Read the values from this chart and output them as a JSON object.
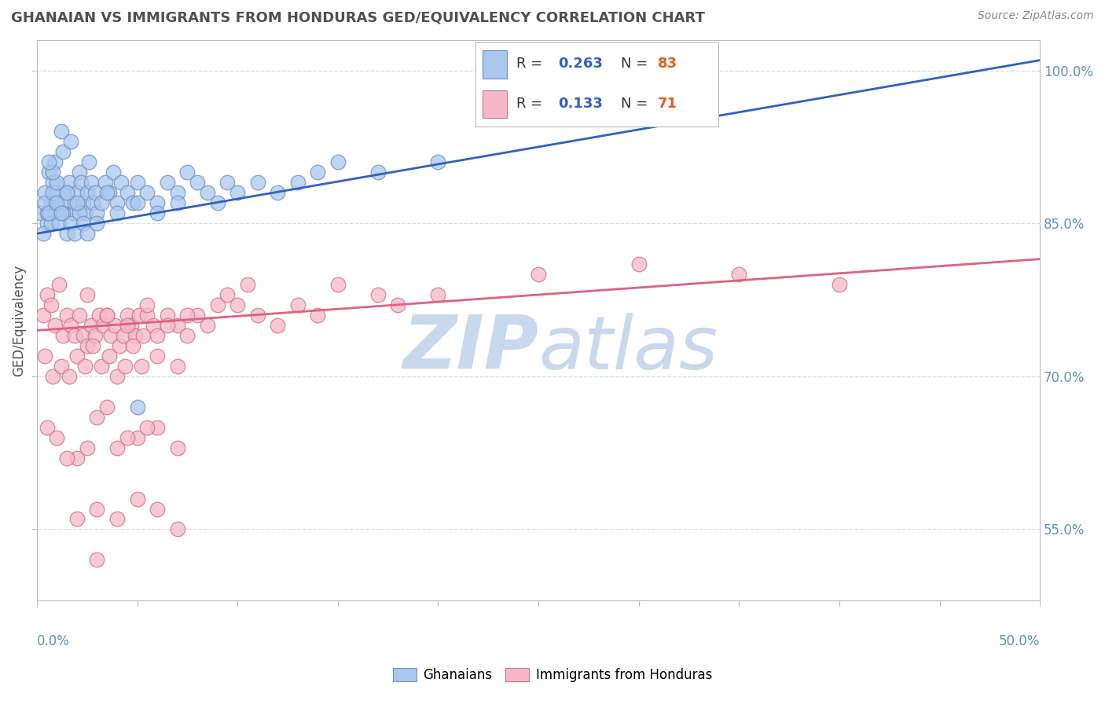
{
  "title": "GHANAIAN VS IMMIGRANTS FROM HONDURAS GED/EQUIVALENCY CORRELATION CHART",
  "source": "Source: ZipAtlas.com",
  "ylabel": "GED/Equivalency",
  "xmin": 0.0,
  "xmax": 50.0,
  "ymin": 48.0,
  "ymax": 103.0,
  "ytick_vals": [
    55,
    70,
    85,
    100
  ],
  "ytick_labels": [
    "55.0%",
    "70.0%",
    "85.0%",
    "100.0%"
  ],
  "legend_r1": "0.263",
  "legend_n1": "83",
  "legend_r2": "0.133",
  "legend_n2": "71",
  "blue_color": "#A8C8F0",
  "pink_color": "#F5B8C8",
  "blue_edge": "#7090C0",
  "pink_edge": "#D07090",
  "trend_blue": "#3060C0",
  "trend_pink": "#E06080",
  "title_color": "#505050",
  "axis_color": "#6090C0",
  "watermark_color": "#C8D8EE",
  "grid_color": "#D0DFF0",
  "grid_style": "--",
  "blue_scatter_x": [
    0.2,
    0.4,
    0.5,
    0.6,
    0.7,
    0.8,
    0.9,
    1.0,
    1.1,
    1.2,
    1.3,
    1.4,
    1.5,
    1.6,
    1.7,
    1.8,
    1.9,
    2.0,
    2.1,
    2.2,
    2.3,
    2.4,
    2.5,
    2.6,
    2.7,
    2.8,
    2.9,
    3.0,
    3.2,
    3.4,
    3.6,
    3.8,
    4.0,
    4.2,
    4.5,
    4.8,
    5.0,
    5.5,
    6.0,
    6.5,
    7.0,
    7.5,
    8.0,
    8.5,
    9.0,
    9.5,
    10.0,
    11.0,
    12.0,
    13.0,
    14.0,
    15.0,
    17.0,
    20.0,
    0.3,
    0.5,
    0.7,
    0.9,
    1.1,
    1.3,
    1.5,
    1.7,
    1.9,
    2.1,
    2.3,
    2.5,
    0.4,
    0.6,
    0.8,
    1.0,
    1.2,
    3.0,
    4.0,
    5.0,
    6.0,
    7.0,
    3.5,
    2.0,
    1.5,
    1.0,
    0.8,
    0.6,
    5.0
  ],
  "blue_scatter_y": [
    86,
    88,
    85,
    90,
    87,
    89,
    91,
    88,
    86,
    94,
    92,
    87,
    88,
    89,
    93,
    86,
    87,
    88,
    90,
    89,
    87,
    86,
    88,
    91,
    89,
    87,
    88,
    86,
    87,
    89,
    88,
    90,
    87,
    89,
    88,
    87,
    89,
    88,
    87,
    89,
    88,
    90,
    89,
    88,
    87,
    89,
    88,
    89,
    88,
    89,
    90,
    91,
    90,
    91,
    84,
    86,
    85,
    87,
    85,
    86,
    84,
    85,
    84,
    86,
    85,
    84,
    87,
    86,
    88,
    87,
    86,
    85,
    86,
    87,
    86,
    87,
    88,
    87,
    88,
    89,
    90,
    91,
    67
  ],
  "pink_scatter_x": [
    0.3,
    0.5,
    0.7,
    0.9,
    1.1,
    1.3,
    1.5,
    1.7,
    1.9,
    2.1,
    2.3,
    2.5,
    2.7,
    2.9,
    3.1,
    3.3,
    3.5,
    3.7,
    3.9,
    4.1,
    4.3,
    4.5,
    4.7,
    4.9,
    5.1,
    5.3,
    5.5,
    5.8,
    6.0,
    6.5,
    7.0,
    7.5,
    8.0,
    8.5,
    9.0,
    9.5,
    10.0,
    10.5,
    11.0,
    12.0,
    13.0,
    14.0,
    15.0,
    17.0,
    18.0,
    20.0,
    25.0,
    30.0,
    35.0,
    40.0,
    0.4,
    0.8,
    1.2,
    1.6,
    2.0,
    2.4,
    2.8,
    3.2,
    3.6,
    4.0,
    4.4,
    4.8,
    5.2,
    6.0,
    7.0,
    2.5,
    3.5,
    4.5,
    5.5,
    6.5,
    7.5
  ],
  "pink_scatter_y": [
    76,
    78,
    77,
    75,
    79,
    74,
    76,
    75,
    74,
    76,
    74,
    73,
    75,
    74,
    76,
    75,
    76,
    74,
    75,
    73,
    74,
    76,
    75,
    74,
    76,
    74,
    76,
    75,
    74,
    76,
    75,
    74,
    76,
    75,
    77,
    78,
    77,
    79,
    76,
    75,
    77,
    76,
    79,
    78,
    77,
    78,
    80,
    81,
    80,
    79,
    72,
    70,
    71,
    70,
    72,
    71,
    73,
    71,
    72,
    70,
    71,
    73,
    71,
    72,
    71,
    78,
    76,
    75,
    77,
    75,
    76
  ],
  "pink_low_x": [
    0.5,
    1.0,
    2.0,
    3.0,
    4.0,
    5.0,
    6.0,
    7.0,
    3.5,
    1.5,
    2.5,
    4.5,
    5.5
  ],
  "pink_low_y": [
    65,
    64,
    62,
    66,
    63,
    64,
    65,
    63,
    67,
    62,
    63,
    64,
    65
  ],
  "pink_vlow_x": [
    2.0,
    3.0,
    4.0,
    5.0,
    6.0,
    7.0
  ],
  "pink_vlow_y": [
    56,
    57,
    56,
    58,
    57,
    55
  ],
  "pink_vvlow_x": [
    3.0
  ],
  "pink_vvlow_y": [
    52
  ],
  "blue_trend_x": [
    0.0,
    50.0
  ],
  "blue_trend_y": [
    84.0,
    101.0
  ],
  "pink_trend_x": [
    0.0,
    50.0
  ],
  "pink_trend_y": [
    74.5,
    81.5
  ],
  "watermark_zip": "ZIP",
  "watermark_atlas": "atlas",
  "n_color": "#E06020"
}
